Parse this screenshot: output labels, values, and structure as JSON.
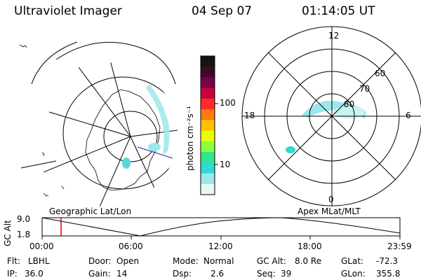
{
  "header": {
    "title": "Ultraviolet Imager",
    "date": "04 Sep 07",
    "time": "01:14:05 UT"
  },
  "colorbar": {
    "label": "photon cm⁻²s⁻¹",
    "ticks": [
      "100",
      "10"
    ],
    "colors": [
      "#141414",
      "#3a0a2a",
      "#7a004a",
      "#c8003c",
      "#ff2a2a",
      "#ff7a10",
      "#ffc000",
      "#e6ff00",
      "#8cff40",
      "#30e88a",
      "#30d8d8",
      "#9be8ea",
      "#e8f8f8"
    ]
  },
  "geo_panel": {
    "label": "Geographic Lat/Lon"
  },
  "polar_panel": {
    "label": "Apex  MLat/MLT",
    "hours": {
      "top": "12",
      "left": "18",
      "right": "6",
      "bottom": "0"
    },
    "lat_labels": [
      "60",
      "70",
      "80"
    ]
  },
  "altitude_plot": {
    "ylabel": "GC Alt",
    "ymax": "9.0",
    "ymin": "1.8",
    "xticks": [
      "00:00",
      "06:00",
      "12:00",
      "18:00",
      "23:59"
    ],
    "marker_time": "01:14"
  },
  "info": {
    "flt_label": "Flt:",
    "flt_value": "LBHL",
    "ip_label": "IP:",
    "ip_value": "36.0",
    "door_label": "Door:",
    "door_value": "Open",
    "gain_label": "Gain:",
    "gain_value": "14",
    "mode_label": "Mode:",
    "mode_value": "Normal",
    "dsp_label": "Dsp:",
    "dsp_value": "2.6",
    "gcalt_label": "GC Alt:",
    "gcalt_value": "8.0 Re",
    "seq_label": "Seq:",
    "seq_value": "39",
    "glat_label": "GLat:",
    "glat_value": "-72.3",
    "glon_label": "GLon:",
    "glon_value": "355.8"
  }
}
